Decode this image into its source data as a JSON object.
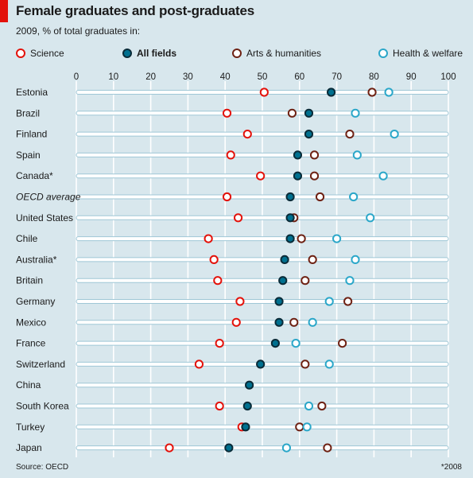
{
  "title": "Female graduates and post-graduates",
  "subtitle": "2009, % of total graduates in:",
  "source": "Source: OECD",
  "footnote": "*2008",
  "legend": [
    {
      "key": "science",
      "label": "Science"
    },
    {
      "key": "all_fields",
      "label": "All fields"
    },
    {
      "key": "arts",
      "label": "Arts & humanities"
    },
    {
      "key": "health",
      "label": "Health & welfare"
    }
  ],
  "colors": {
    "science": "#e3120b",
    "all_fields": "#00708f",
    "all_fields_outline": "#0a2b38",
    "arts": "#6e2214",
    "health": "#2ba7c9",
    "background": "#d8e7ed",
    "track": "#9fc7d6"
  },
  "chart_data": {
    "type": "scatter",
    "title": "Female graduates and post-graduates",
    "subtitle": "2009, % of total graduates in:",
    "xlim": [
      0,
      100
    ],
    "xticks": [
      0,
      10,
      20,
      30,
      40,
      50,
      60,
      70,
      80,
      90,
      100
    ],
    "grid": true,
    "legend_position": "top",
    "categories": [
      "Estonia",
      "Brazil",
      "Finland",
      "Spain",
      "Canada*",
      "OECD average",
      "United States",
      "Chile",
      "Australia*",
      "Britain",
      "Germany",
      "Mexico",
      "France",
      "Switzerland",
      "China",
      "South Korea",
      "Turkey",
      "Japan"
    ],
    "italic_categories": [
      "OECD average"
    ],
    "series": [
      {
        "key": "science",
        "name": "Science",
        "values": [
          50.5,
          40.5,
          46,
          41.5,
          49.5,
          40.5,
          43.5,
          35.5,
          37,
          38,
          44,
          43,
          38.5,
          33,
          null,
          38.5,
          44.5,
          25
        ]
      },
      {
        "key": "all_fields",
        "name": "All fields",
        "values": [
          68.5,
          62.5,
          62.5,
          59.5,
          59.5,
          57.5,
          57.5,
          57.5,
          56,
          55.5,
          54.5,
          54.5,
          53.5,
          49.5,
          46.5,
          46,
          45.5,
          41
        ]
      },
      {
        "key": "arts",
        "name": "Arts & humanities",
        "values": [
          79.5,
          58,
          73.5,
          64,
          64,
          65.5,
          58.5,
          60.5,
          63.5,
          61.5,
          73,
          58.5,
          71.5,
          61.5,
          null,
          66,
          60,
          67.5
        ]
      },
      {
        "key": "health",
        "name": "Health & welfare",
        "values": [
          84,
          75,
          85.5,
          75.5,
          82.5,
          74.5,
          79,
          70,
          75,
          73.5,
          68,
          63.5,
          59,
          68,
          null,
          62.5,
          62,
          56.5
        ]
      }
    ]
  }
}
